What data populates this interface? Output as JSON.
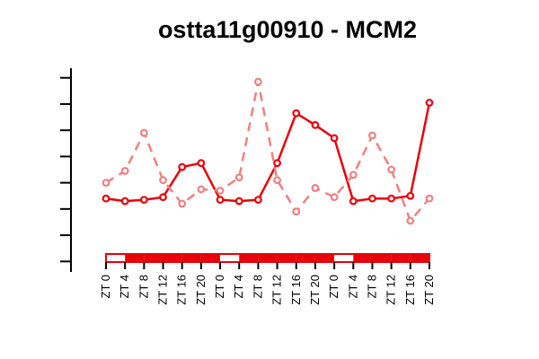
{
  "chart_data": {
    "type": "line",
    "title": "ostta11g00910 - MCM2",
    "xlabel": "",
    "ylabel": "",
    "categories": [
      "ZT 0",
      "ZT 4",
      "ZT 8",
      "ZT 12",
      "ZT 16",
      "ZT 20",
      "ZT 0",
      "ZT 4",
      "ZT 8",
      "ZT 12",
      "ZT 16",
      "ZT 20",
      "ZT 0",
      "ZT 4",
      "ZT 8",
      "ZT 12",
      "ZT 16",
      "ZT 20"
    ],
    "ylim": [
      0.6,
      8.4
    ],
    "series": [
      {
        "color": "#e8000b",
        "style": "solid",
        "values": [
          3.4,
          3.3,
          3.35,
          3.45,
          4.6,
          4.75,
          3.35,
          3.3,
          3.35,
          4.75,
          6.65,
          6.2,
          5.7,
          3.3,
          3.4,
          3.4,
          3.5,
          7.05
        ]
      },
      {
        "color": "#f08080",
        "style": "dashed",
        "values": [
          4.0,
          4.45,
          5.9,
          4.1,
          3.2,
          3.75,
          3.7,
          4.2,
          7.85,
          4.1,
          2.9,
          3.8,
          3.45,
          4.3,
          5.8,
          4.5,
          2.55,
          3.4
        ]
      }
    ],
    "light_dark_bar": [
      "light",
      "dark",
      "dark",
      "dark",
      "dark",
      "dark",
      "light",
      "dark",
      "dark",
      "dark",
      "dark",
      "dark",
      "light",
      "dark",
      "dark",
      "dark",
      "dark",
      "dark"
    ],
    "grid": false,
    "legend": "none"
  }
}
